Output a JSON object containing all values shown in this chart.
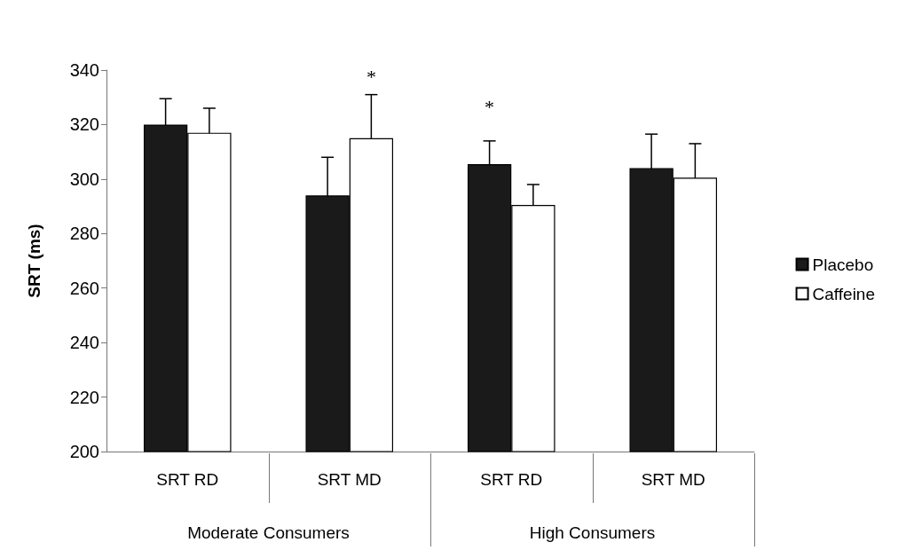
{
  "chart_data": {
    "type": "bar",
    "ylabel": "SRT (ms)",
    "categories": [
      "SRT RD",
      "SRT MD",
      "SRT RD",
      "SRT MD"
    ],
    "series": [
      {
        "name": "Placebo",
        "color": "#1a1a1a",
        "values": [
          320,
          294,
          305.5,
          304
        ],
        "errors": [
          9.5,
          14,
          8.5,
          12.5
        ]
      },
      {
        "name": "Caffeine",
        "color": "#ffffff",
        "values": [
          317,
          315,
          290.5,
          300.5
        ],
        "errors": [
          9,
          16,
          7.5,
          12.5
        ]
      }
    ],
    "ylim": [
      200,
      340
    ],
    "yticks": [
      200,
      220,
      240,
      260,
      280,
      300,
      320,
      340
    ],
    "grid": false,
    "legend": "right",
    "annotations": [
      "*",
      "*",
      "Moderate Consumers",
      "High Consumers"
    ]
  }
}
